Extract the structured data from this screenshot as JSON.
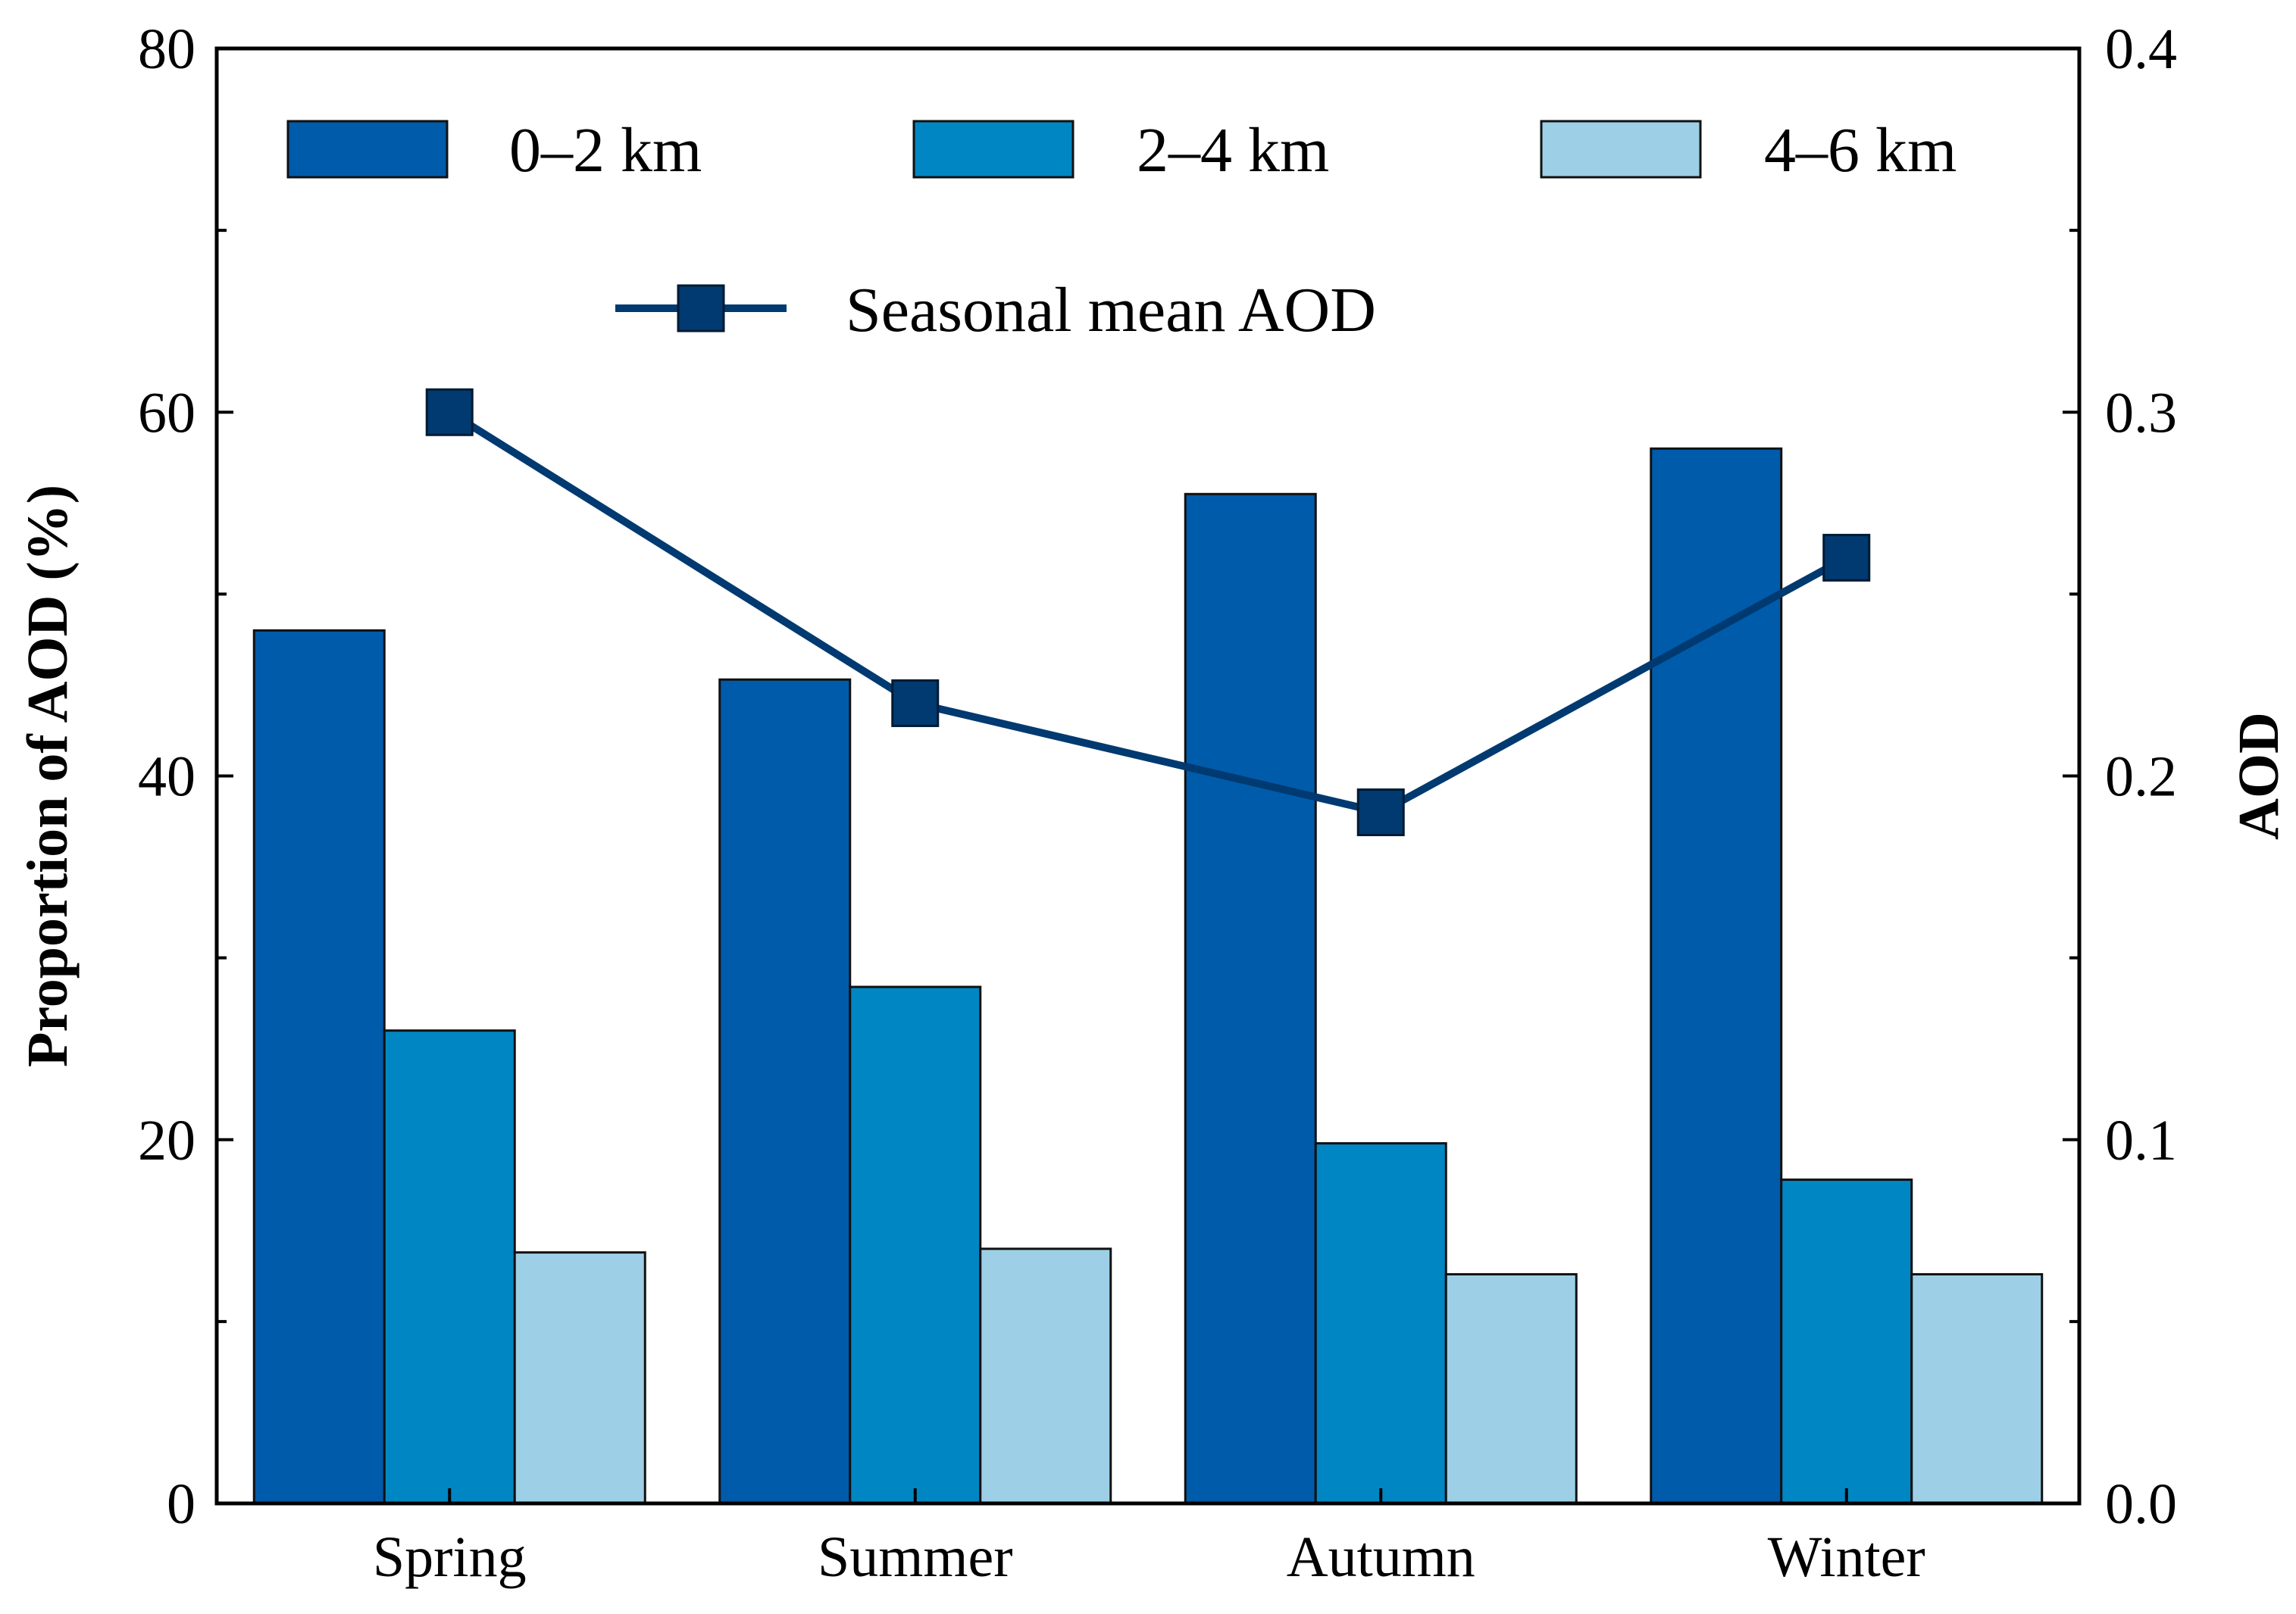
{
  "chart_data": {
    "type": "bar",
    "categories": [
      "Spring",
      "Summer",
      "Autumn",
      "Winter"
    ],
    "series": [
      {
        "name": "0–2 km",
        "values": [
          48.0,
          45.3,
          55.5,
          58.0
        ],
        "color": "#005BAA"
      },
      {
        "name": "2–4 km",
        "values": [
          26.0,
          28.4,
          19.8,
          17.8
        ],
        "color": "#0087C3"
      },
      {
        "name": "4–6 km",
        "values": [
          13.8,
          14.0,
          12.6,
          12.6
        ],
        "color": "#9DD0E6"
      }
    ],
    "line_series": {
      "name": "Seasonal mean AOD",
      "values": [
        0.3,
        0.22,
        0.19,
        0.26
      ],
      "color": "#003A70",
      "axis": "right",
      "marker": "square"
    },
    "ylabel": "Proportion of AOD (%)",
    "ylabel_right": "AOD",
    "ylim": [
      0,
      80
    ],
    "ylim_right": [
      0,
      0.4
    ],
    "yticks": [
      "0",
      "20",
      "40",
      "60",
      "80"
    ],
    "yticks_right": [
      "0.0",
      "0.1",
      "0.2",
      "0.3",
      "0.4"
    ],
    "ytick_values": [
      0,
      20,
      40,
      60,
      80
    ],
    "ytick_values_right": [
      0,
      0.1,
      0.2,
      0.3,
      0.4
    ],
    "legend_position": "top",
    "grid": false
  }
}
